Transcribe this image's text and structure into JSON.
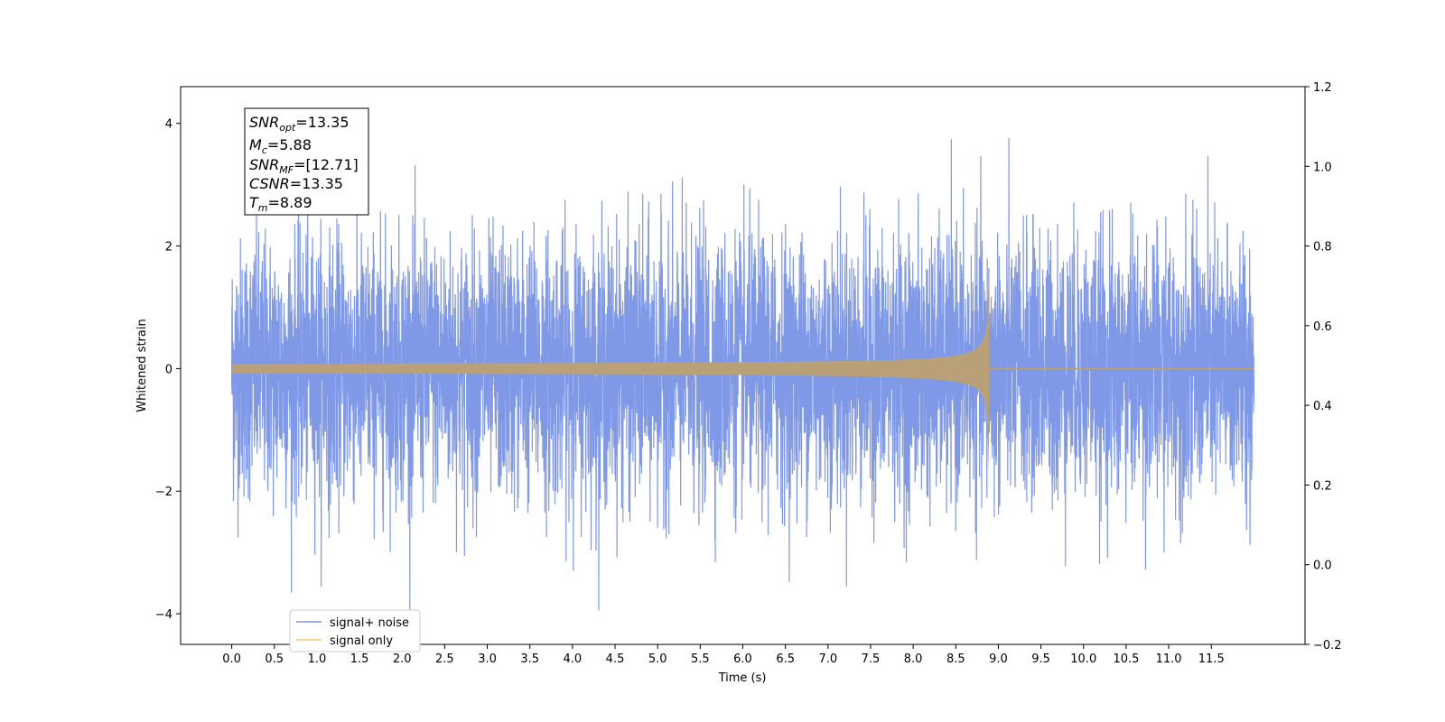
{
  "chart_data": {
    "type": "line",
    "title": "",
    "xlabel": "Time (s)",
    "ylabel": "Whitened strain",
    "xlim": [
      -0.6,
      12.6
    ],
    "ylim": [
      -4.5,
      4.6
    ],
    "y2lim": [
      -0.2,
      1.2
    ],
    "x_ticks": [
      "0.0",
      "0.5",
      "1.0",
      "1.5",
      "2.0",
      "2.5",
      "3.0",
      "3.5",
      "4.0",
      "4.5",
      "5.0",
      "5.5",
      "6.0",
      "6.5",
      "7.0",
      "7.5",
      "8.0",
      "8.5",
      "9.0",
      "9.5",
      "10.0",
      "10.5",
      "11.0",
      "11.5"
    ],
    "y_ticks": [
      "−4",
      "−2",
      "0",
      "2",
      "4"
    ],
    "y2_ticks": [
      "−0.2",
      "0.0",
      "0.2",
      "0.4",
      "0.6",
      "0.8",
      "1.0",
      "1.2"
    ],
    "grid": false,
    "legend_position": "lower-left",
    "series": [
      {
        "name": "signal+ noise",
        "color": "#7893e6",
        "description_values": {
          "x_start": 0.0,
          "x_end": 12.0,
          "typical_range": [
            -2.5,
            2.5
          ],
          "max": 4.2,
          "min": -4.05
        }
      },
      {
        "name": "signal only",
        "color": "#ffc66e",
        "description_values": {
          "x_start": 0.0,
          "x_end": 12.0,
          "merger_time": 8.89,
          "peak_amplitude": 1.55,
          "min_amplitude": -1.75,
          "start_amplitude": 0.05
        }
      }
    ],
    "annotations": [
      {
        "name": "SNR",
        "sub": "opt",
        "value": "=13.35"
      },
      {
        "name": "M",
        "sub": "c",
        "value": "=5.88"
      },
      {
        "name": "SNR",
        "sub": "MF",
        "value": "=[12.71]"
      },
      {
        "name": "CSNR",
        "sub": "",
        "value": "=13.35"
      },
      {
        "name": "T",
        "sub": "m",
        "value": "=8.89"
      }
    ]
  }
}
